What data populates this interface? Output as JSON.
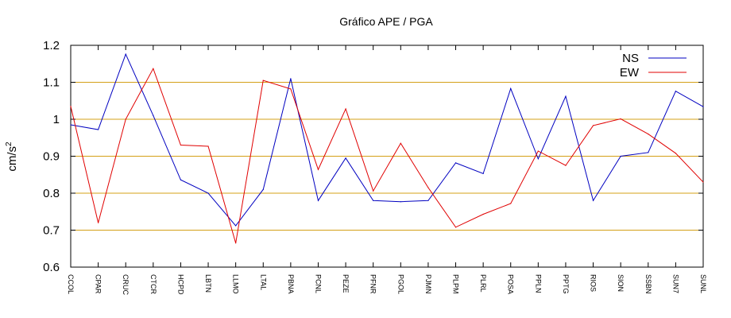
{
  "chart_data": {
    "type": "line",
    "title": "Gráfico  APE / PGA",
    "xlabel": "",
    "ylabel": "cm/s",
    "ylabel_superscript": "2",
    "ylim": [
      0.6,
      1.2
    ],
    "yticks": [
      0.6,
      0.7,
      0.8,
      0.9,
      1,
      1.1,
      1.2
    ],
    "ytick_labels": [
      "0.6",
      "0.7",
      "0.8",
      "0.9",
      "1",
      "1.1",
      "1.2"
    ],
    "grid": "horizontal",
    "grid_color": "#d4a017",
    "legend_placement": "top-right",
    "categories": [
      "CCOL",
      "CPAR",
      "CRUC",
      "CTCR",
      "HCPD",
      "LBTN",
      "LLMO",
      "LTAL",
      "PBNA",
      "PCNL",
      "PEZE",
      "PFNR",
      "PGOL",
      "PJMN",
      "PLPM",
      "PLRL",
      "POSA",
      "PPLN",
      "PPTG",
      "RIOS",
      "SION",
      "SSBN",
      "SUN7",
      "SUNL"
    ],
    "series": [
      {
        "name": "NS",
        "color": "#0000c0",
        "values": [
          0.985,
          0.972,
          1.176,
          1.01,
          0.836,
          0.8,
          0.712,
          0.81,
          1.11,
          0.78,
          0.895,
          0.78,
          0.777,
          0.78,
          0.882,
          0.853,
          1.083,
          0.893,
          1.062,
          0.78,
          0.9,
          0.91,
          1.076,
          1.034
        ]
      },
      {
        "name": "EW",
        "color": "#e00000",
        "values": [
          1.035,
          0.72,
          1.0,
          1.137,
          0.93,
          0.927,
          0.665,
          1.105,
          1.082,
          0.864,
          1.028,
          0.806,
          0.935,
          0.815,
          0.708,
          0.743,
          0.772,
          0.914,
          0.875,
          0.983,
          1.001,
          0.96,
          0.908,
          0.83
        ]
      }
    ]
  }
}
